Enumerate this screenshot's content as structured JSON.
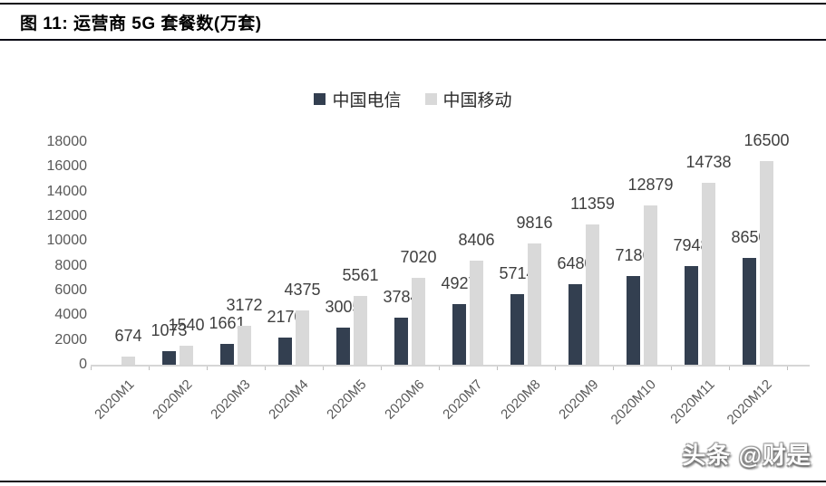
{
  "figure": {
    "title": "图 11:  运营商 5G 套餐数(万套)",
    "watermark": "头条 @财是"
  },
  "chart_data": {
    "type": "bar",
    "title": "运营商 5G 套餐数(万套)",
    "categories": [
      "2020M1",
      "2020M2",
      "2020M3",
      "2020M4",
      "2020M5",
      "2020M6",
      "2020M7",
      "2020M8",
      "2020M9",
      "2020M10",
      "2020M11",
      "2020M12"
    ],
    "series": [
      {
        "name": "中国电信",
        "color": "#333F50",
        "values": [
          null,
          1073,
          1661,
          2170,
          3005,
          3784,
          4927,
          5714,
          6480,
          7186,
          7948,
          8650
        ]
      },
      {
        "name": "中国移动",
        "color": "#D9D9D9",
        "values": [
          674,
          1540,
          3172,
          4375,
          5561,
          7020,
          8406,
          9816,
          11359,
          12879,
          14738,
          16500
        ]
      }
    ],
    "xlabel": "",
    "ylabel": "",
    "ylim": [
      0,
      18000
    ],
    "ytick_step": 2000,
    "grid": false,
    "legend_position": "top",
    "bar_value_labels": true,
    "axis_label_color": "#595959",
    "value_label_color": "#3f3f3f"
  }
}
